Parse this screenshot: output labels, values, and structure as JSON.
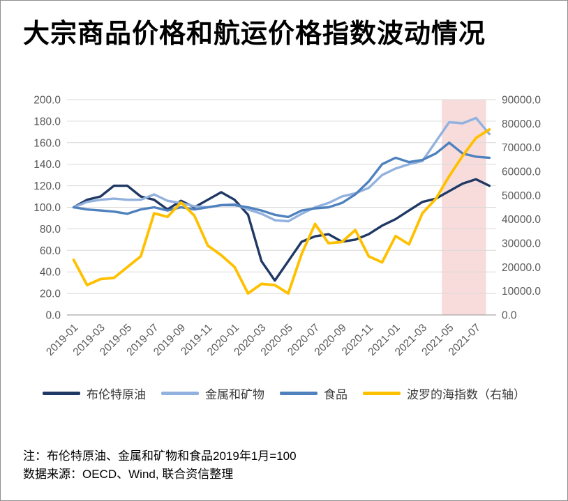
{
  "title": "大宗商品价格和航运价格指数波动情况",
  "notes": {
    "line1": "注：布伦特原油、金属和矿物和食品2019年1月=100",
    "line2": "数据来源：OECD、Wind, 联合资信整理"
  },
  "colors": {
    "brent": "#1F3864",
    "metals": "#92B1DE",
    "food": "#4E81BD",
    "baltic": "#FFC000",
    "highlight_band": "#F8DCDC",
    "gridline": "#D9D9D9",
    "axis_line": "#A6A6A6",
    "axis_text": "#595959"
  },
  "chart_data": {
    "type": "line",
    "title": "大宗商品价格和航运价格指数波动情况",
    "x": [
      "2019-01",
      "2019-02",
      "2019-03",
      "2019-04",
      "2019-05",
      "2019-06",
      "2019-07",
      "2019-08",
      "2019-09",
      "2019-10",
      "2019-11",
      "2019-12",
      "2020-01",
      "2020-02",
      "2020-03",
      "2020-04",
      "2020-05",
      "2020-06",
      "2020-07",
      "2020-08",
      "2020-09",
      "2020-10",
      "2020-11",
      "2020-12",
      "2021-01",
      "2021-02",
      "2021-03",
      "2021-04",
      "2021-05",
      "2021-06",
      "2021-07",
      "2021-08"
    ],
    "x_tick_step": 2,
    "left_axis": {
      "min": 0,
      "max": 200,
      "step": 20,
      "tick_labels": [
        "0.0",
        "20.0",
        "40.0",
        "60.0",
        "80.0",
        "100.0",
        "120.0",
        "140.0",
        "160.0",
        "180.0",
        "200.0"
      ]
    },
    "right_axis": {
      "min": 0,
      "max": 90000,
      "step": 10000,
      "tick_labels": [
        "0.0",
        "10000.0",
        "20000.0",
        "30000.0",
        "40000.0",
        "50000.0",
        "60000.0",
        "70000.0",
        "80000.0",
        "90000.0"
      ]
    },
    "grid": true,
    "legend_position": "bottom",
    "highlight_band": {
      "from_month": "2021-05",
      "to_month": "2021-08",
      "color": "#F8DCDC"
    },
    "series": [
      {
        "id": "brent",
        "name": "布伦特原油",
        "axis": "left",
        "color": "#1F3864",
        "width": 3.4,
        "values": [
          100,
          107,
          110,
          120,
          120,
          110,
          107,
          98,
          106,
          100,
          107,
          114,
          107,
          93,
          50,
          32,
          50,
          68,
          73,
          75,
          68,
          70,
          75,
          83,
          89,
          97,
          105,
          108,
          115,
          122,
          126,
          120
        ]
      },
      {
        "id": "metals",
        "name": "金属和矿物",
        "axis": "left",
        "color": "#92B1DE",
        "width": 3.4,
        "values": [
          100,
          105,
          107,
          108,
          107,
          107,
          112,
          106,
          104,
          101,
          100,
          102,
          103,
          98,
          94,
          88,
          87,
          94,
          100,
          104,
          110,
          113,
          118,
          130,
          136,
          140,
          143,
          161,
          179,
          178,
          183,
          168
        ]
      },
      {
        "id": "food",
        "name": "食品",
        "axis": "left",
        "color": "#4E81BD",
        "width": 3.4,
        "values": [
          100,
          98,
          97,
          96,
          94,
          98,
          100,
          97,
          100,
          98,
          100,
          102,
          102,
          100,
          97,
          93,
          91,
          97,
          99,
          100,
          104,
          112,
          124,
          140,
          146,
          142,
          144,
          150,
          160,
          150,
          147,
          146
        ]
      },
      {
        "id": "baltic",
        "name": "波罗的海指数（右轴）",
        "axis": "right",
        "color": "#FFC000",
        "width": 3.8,
        "values": [
          23000,
          12500,
          15000,
          15500,
          20000,
          24500,
          42500,
          41000,
          47000,
          41500,
          29000,
          25000,
          20000,
          9000,
          13000,
          12500,
          9000,
          25500,
          38000,
          30000,
          30500,
          35500,
          24500,
          22000,
          33000,
          29500,
          42500,
          48500,
          58000,
          66500,
          74000,
          77500
        ]
      }
    ]
  }
}
